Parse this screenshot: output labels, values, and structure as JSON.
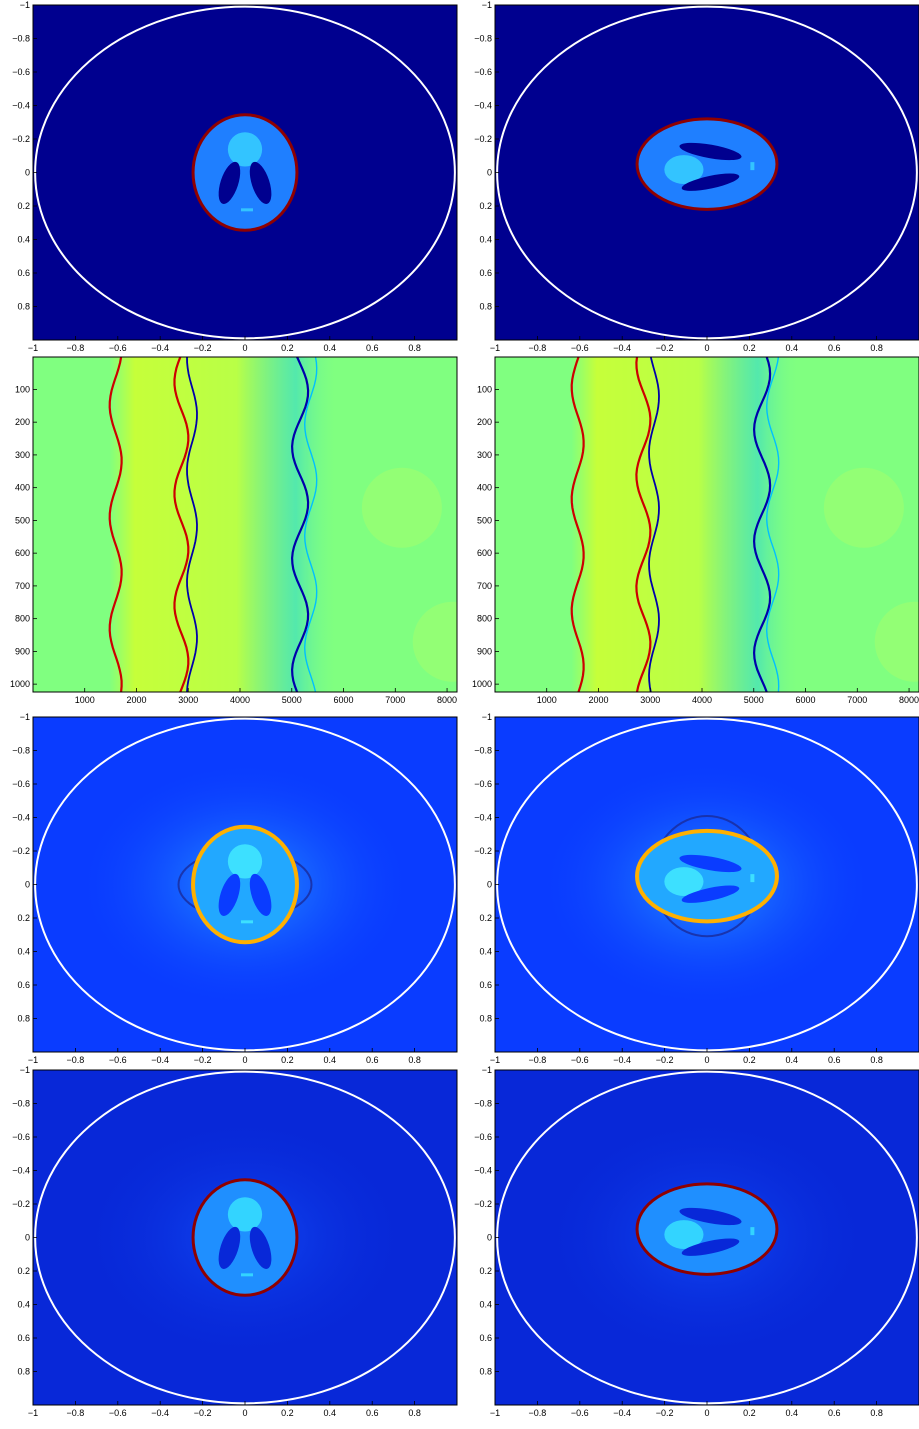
{
  "chart_data": [
    {
      "type": "heatmap",
      "panel": 1,
      "colormap": "jet",
      "xlim": [
        -1,
        1
      ],
      "ylim": [
        -1,
        1
      ],
      "y_reversed": true,
      "xticks": [
        -1,
        -0.8,
        -0.6,
        -0.4,
        -0.2,
        0,
        0.2,
        0.4,
        0.6,
        0.8
      ],
      "yticks": [
        -1,
        -0.8,
        -0.6,
        -0.4,
        -0.2,
        0,
        0.2,
        0.4,
        0.6,
        0.8
      ],
      "content": "phantom-circle",
      "colors": {
        "background": "#00008f",
        "object": "#1f7fff",
        "bright": "#33c4ff",
        "dark": "#00008f",
        "rim": "#8f0000",
        "boundary": "#ffffff"
      }
    },
    {
      "type": "heatmap",
      "panel": 2,
      "colormap": "jet",
      "xlim": [
        -1,
        1
      ],
      "ylim": [
        -1,
        1
      ],
      "y_reversed": true,
      "xticks": [
        -1,
        -0.8,
        -0.6,
        -0.4,
        -0.2,
        0,
        0.2,
        0.4,
        0.6,
        0.8
      ],
      "yticks": [
        -1,
        -0.8,
        -0.6,
        -0.4,
        -0.2,
        0,
        0.2,
        0.4,
        0.6,
        0.8
      ],
      "content": "phantom-ellipse",
      "colors": {
        "background": "#00008f",
        "object": "#1f7fff",
        "bright": "#33c4ff",
        "dark": "#00008f",
        "rim": "#8f0000",
        "boundary": "#ffffff"
      }
    },
    {
      "type": "heatmap",
      "panel": 3,
      "colormap": "jet",
      "xlim": [
        1,
        8192
      ],
      "ylim": [
        1,
        1024
      ],
      "y_reversed": true,
      "xticks": [
        1000,
        2000,
        3000,
        4000,
        5000,
        6000,
        7000,
        8000
      ],
      "yticks": [
        100,
        200,
        300,
        400,
        500,
        600,
        700,
        800,
        900,
        1000
      ],
      "content": "sinogram",
      "colors": {
        "background": "#80ff80",
        "positive": "#ffff00",
        "negative": "#00bfff",
        "peak": "#cc0000",
        "trough": "#0000aa"
      }
    },
    {
      "type": "heatmap",
      "panel": 4,
      "colormap": "jet",
      "xlim": [
        1,
        8192
      ],
      "ylim": [
        1,
        1024
      ],
      "y_reversed": true,
      "xticks": [
        1000,
        2000,
        3000,
        4000,
        5000,
        6000,
        7000,
        8000
      ],
      "yticks": [
        100,
        200,
        300,
        400,
        500,
        600,
        700,
        800,
        900,
        1000
      ],
      "content": "sinogram",
      "colors": {
        "background": "#80ff80",
        "positive": "#ffff00",
        "negative": "#00bfff",
        "peak": "#cc0000",
        "trough": "#0000aa"
      }
    },
    {
      "type": "heatmap",
      "panel": 5,
      "colormap": "jet",
      "xlim": [
        -1,
        1
      ],
      "ylim": [
        -1,
        1
      ],
      "y_reversed": true,
      "xticks": [
        -1,
        -0.8,
        -0.6,
        -0.4,
        -0.2,
        0,
        0.2,
        0.4,
        0.6,
        0.8
      ],
      "yticks": [
        -1,
        -0.8,
        -0.6,
        -0.4,
        -0.2,
        0,
        0.2,
        0.4,
        0.6,
        0.8
      ],
      "content": "reconstruction-circle",
      "colors": {
        "background": "#0a3cff",
        "object": "#22a8ff",
        "bright": "#3de0ff",
        "dark": "#0a3cff",
        "rim": "#ffb000",
        "boundary": "#ffffff"
      }
    },
    {
      "type": "heatmap",
      "panel": 6,
      "colormap": "jet",
      "xlim": [
        -1,
        1
      ],
      "ylim": [
        -1,
        1
      ],
      "y_reversed": true,
      "xticks": [
        -1,
        -0.8,
        -0.6,
        -0.4,
        -0.2,
        0,
        0.2,
        0.4,
        0.6,
        0.8
      ],
      "yticks": [
        -1,
        -0.8,
        -0.6,
        -0.4,
        -0.2,
        0,
        0.2,
        0.4,
        0.6,
        0.8
      ],
      "content": "reconstruction-ellipse",
      "colors": {
        "background": "#0a3cff",
        "object": "#22a8ff",
        "bright": "#3de0ff",
        "dark": "#0a3cff",
        "rim": "#ffb000",
        "boundary": "#ffffff"
      }
    },
    {
      "type": "heatmap",
      "panel": 7,
      "colormap": "jet",
      "xlim": [
        -1,
        1
      ],
      "ylim": [
        -1,
        1
      ],
      "y_reversed": true,
      "xticks": [
        -1,
        -0.8,
        -0.6,
        -0.4,
        -0.2,
        0,
        0.2,
        0.4,
        0.6,
        0.8
      ],
      "yticks": [
        -1,
        -0.8,
        -0.6,
        -0.4,
        -0.2,
        0,
        0.2,
        0.4,
        0.6,
        0.8
      ],
      "content": "corrected-circle",
      "colors": {
        "background": "#0828d8",
        "object": "#1f8fff",
        "bright": "#33d4ff",
        "dark": "#0828d8",
        "rim": "#8f0000",
        "boundary": "#ffffff"
      }
    },
    {
      "type": "heatmap",
      "panel": 8,
      "colormap": "jet",
      "xlim": [
        -1,
        1
      ],
      "ylim": [
        -1,
        1
      ],
      "y_reversed": true,
      "xticks": [
        -1,
        -0.8,
        -0.6,
        -0.4,
        -0.2,
        0,
        0.2,
        0.4,
        0.6,
        0.8
      ],
      "yticks": [
        -1,
        -0.8,
        -0.6,
        -0.4,
        -0.2,
        0,
        0.2,
        0.4,
        0.6,
        0.8
      ],
      "content": "corrected-ellipse",
      "colors": {
        "background": "#0828d8",
        "object": "#1f8fff",
        "bright": "#33d4ff",
        "dark": "#0828d8",
        "rim": "#8f0000",
        "boundary": "#ffffff"
      }
    }
  ]
}
